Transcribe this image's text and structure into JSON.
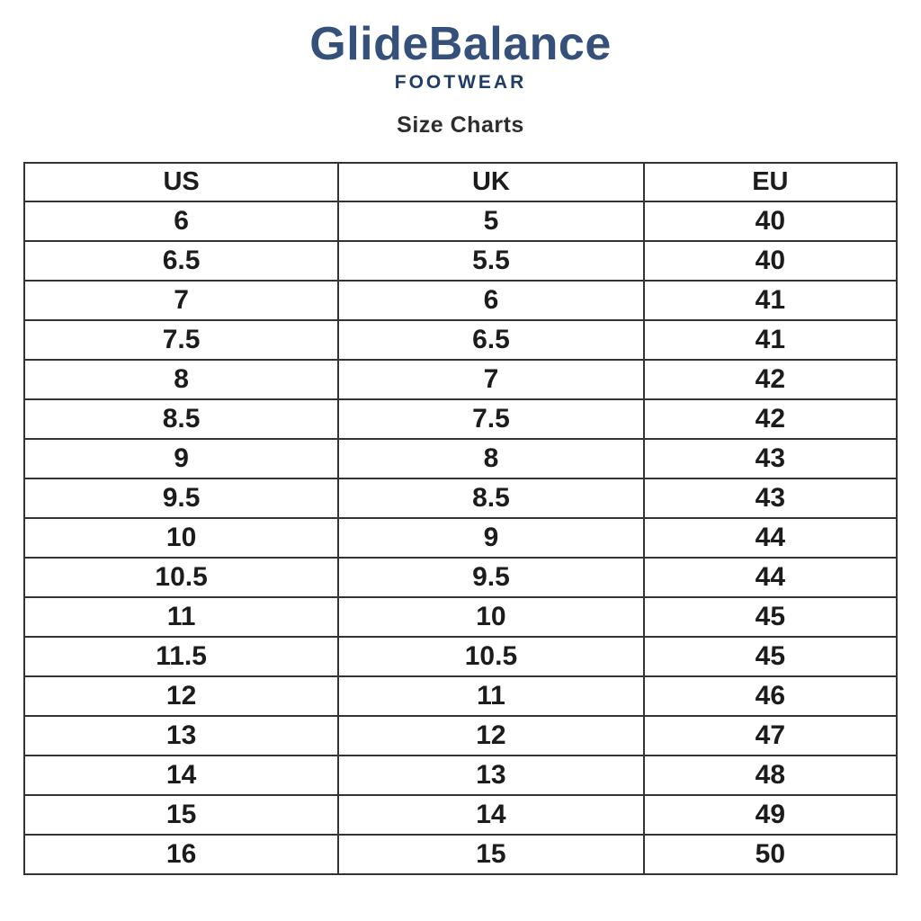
{
  "brand": {
    "name": "GlideBalance",
    "tagline": "FOOTWEAR"
  },
  "page_title": "Size Charts",
  "size_table": {
    "columns": [
      "US",
      "UK",
      "EU"
    ],
    "rows": [
      [
        "6",
        "5",
        "40"
      ],
      [
        "6.5",
        "5.5",
        "40"
      ],
      [
        "7",
        "6",
        "41"
      ],
      [
        "7.5",
        "6.5",
        "41"
      ],
      [
        "8",
        "7",
        "42"
      ],
      [
        "8.5",
        "7.5",
        "42"
      ],
      [
        "9",
        "8",
        "43"
      ],
      [
        "9.5",
        "8.5",
        "43"
      ],
      [
        "10",
        "9",
        "44"
      ],
      [
        "10.5",
        "9.5",
        "44"
      ],
      [
        "11",
        "10",
        "45"
      ],
      [
        "11.5",
        "10.5",
        "45"
      ],
      [
        "12",
        "11",
        "46"
      ],
      [
        "13",
        "12",
        "47"
      ],
      [
        "14",
        "13",
        "48"
      ],
      [
        "15",
        "14",
        "49"
      ],
      [
        "16",
        "15",
        "50"
      ]
    ]
  },
  "colors": {
    "brand_primary": "#35517b",
    "brand_dark": "#1e3c66",
    "title_text": "#2d2d2d",
    "table_border": "#333333",
    "table_text": "#1c1c1c",
    "background": "#ffffff"
  }
}
